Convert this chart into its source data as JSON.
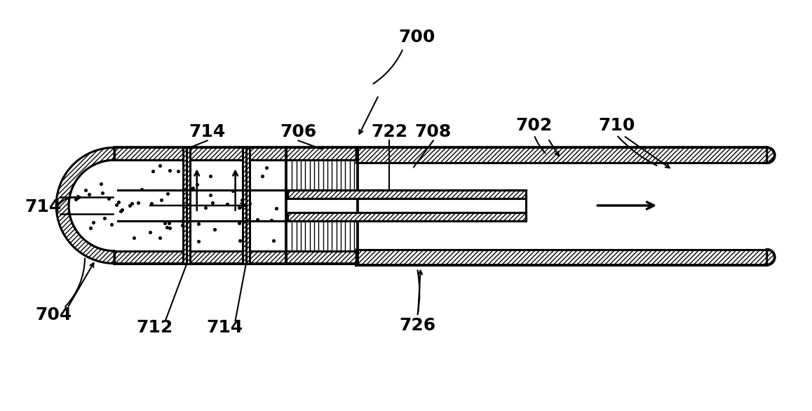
{
  "bg_color": "#ffffff",
  "line_color": "#000000",
  "dot_color": "#000000",
  "figsize": [
    11.58,
    5.86
  ],
  "dpi": 100,
  "lw": 2.2,
  "font_size": 18
}
